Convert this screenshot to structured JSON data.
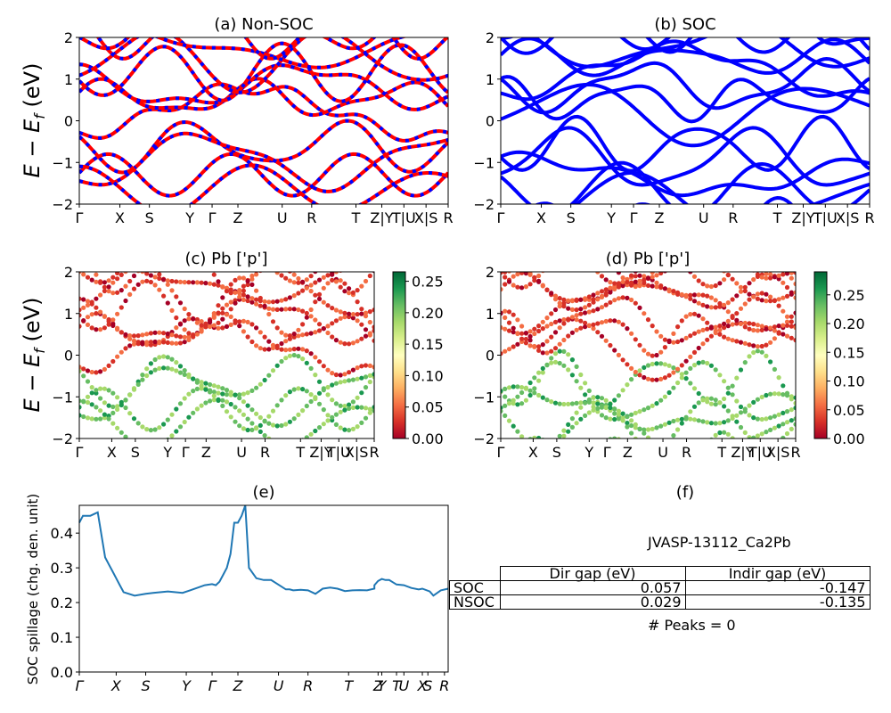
{
  "chart_data": [
    {
      "panel": "a",
      "type": "line",
      "title": "(a) Non-SOC",
      "ylabel": "E − E_f (eV)",
      "ylim": [
        -2,
        2
      ],
      "yticks": [
        -2,
        -1,
        0,
        1,
        2
      ],
      "xticks": [
        "Γ",
        "X",
        "S",
        "Y",
        "Γ",
        "Z",
        "U",
        "R",
        "T",
        "Z|Y",
        "T|U",
        "X|S",
        "R"
      ],
      "series_color": "#ff0000",
      "overlay_color": "#0000ff",
      "bands_below_fermi": 4,
      "bands_above_fermi": 8
    },
    {
      "panel": "b",
      "type": "line",
      "title": "(b) SOC",
      "ylim": [
        -2,
        2
      ],
      "yticks": [
        -2,
        -1,
        0,
        1,
        2
      ],
      "xticks": [
        "Γ",
        "X",
        "S",
        "Y",
        "Γ",
        "Z",
        "U",
        "R",
        "T",
        "Z|Y",
        "T|U",
        "X|S",
        "R"
      ],
      "series_color": "#0000ff",
      "bands_below_fermi": 8,
      "bands_above_fermi": 12
    },
    {
      "panel": "c",
      "type": "scatter",
      "title": "(c)  Pb ['p']",
      "ylabel": "E − E_f (eV)",
      "ylim": [
        -2,
        2
      ],
      "yticks": [
        -2,
        -1,
        0,
        1,
        2
      ],
      "xticks": [
        "Γ",
        "X",
        "S",
        "Y",
        "Γ",
        "Z",
        "U",
        "R",
        "T",
        "Z|Y",
        "T|U",
        "X|S",
        "R"
      ],
      "colormap": "RdYlGn",
      "colorbar_range": [
        0.0,
        0.265
      ],
      "colorbar_ticks": [
        "0.00",
        "0.05",
        "0.10",
        "0.15",
        "0.20",
        "0.25"
      ]
    },
    {
      "panel": "d",
      "type": "scatter",
      "title": "(d) Pb ['p']",
      "ylim": [
        -2,
        2
      ],
      "yticks": [
        -2,
        -1,
        0,
        1,
        2
      ],
      "xticks": [
        "Γ",
        "X",
        "S",
        "Y",
        "Γ",
        "Z",
        "U",
        "R",
        "T",
        "Z|Y",
        "T|U",
        "X|S",
        "R"
      ],
      "colormap": "RdYlGn",
      "colorbar_range": [
        0.0,
        0.29
      ],
      "colorbar_ticks": [
        "0.00",
        "0.05",
        "0.10",
        "0.15",
        "0.20",
        "0.25"
      ]
    },
    {
      "panel": "e",
      "type": "line",
      "title": "(e)",
      "ylabel": "SOC spillage (chg. den. unit)",
      "ylim": [
        0.0,
        0.48
      ],
      "yticks": [
        "0.0",
        "0.1",
        "0.2",
        "0.3",
        "0.4"
      ],
      "xticks": [
        "Γ",
        "X",
        "S",
        "Y",
        "Γ",
        "Z",
        "U",
        "R",
        "T",
        "Z",
        "Y",
        "T",
        "U",
        "X",
        "S",
        "R"
      ],
      "x": [
        0,
        0.01,
        0.03,
        0.05,
        0.07,
        0.08,
        0.09,
        0.1,
        0.11,
        0.12,
        0.15,
        0.18,
        0.2,
        0.24,
        0.28,
        0.3,
        0.34,
        0.36,
        0.37,
        0.38,
        0.39,
        0.4,
        0.41,
        0.42,
        0.43,
        0.44,
        0.45,
        0.46,
        0.48,
        0.5,
        0.52,
        0.56,
        0.57,
        0.58,
        0.6,
        0.62,
        0.64,
        0.66,
        0.68,
        0.7,
        0.72,
        0.74,
        0.76,
        0.78,
        0.8,
        0.8,
        0.81,
        0.82,
        0.83,
        0.84,
        0.86,
        0.88,
        0.9,
        0.92,
        0.93,
        0.95,
        0.96,
        0.98,
        1.0
      ],
      "y": [
        0.43,
        0.45,
        0.45,
        0.46,
        0.33,
        0.31,
        0.29,
        0.27,
        0.25,
        0.23,
        0.22,
        0.225,
        0.228,
        0.232,
        0.228,
        0.235,
        0.25,
        0.253,
        0.25,
        0.26,
        0.28,
        0.3,
        0.34,
        0.43,
        0.43,
        0.45,
        0.48,
        0.3,
        0.27,
        0.265,
        0.265,
        0.238,
        0.238,
        0.235,
        0.237,
        0.235,
        0.225,
        0.24,
        0.243,
        0.24,
        0.233,
        0.235,
        0.236,
        0.235,
        0.24,
        0.25,
        0.262,
        0.268,
        0.265,
        0.265,
        0.252,
        0.25,
        0.242,
        0.238,
        0.24,
        0.232,
        0.22,
        0.235,
        0.24
      ],
      "color": "#1f77b4"
    }
  ],
  "info": {
    "title": "(f)",
    "material": "JVASP-13112_Ca2Pb",
    "col_dir": "Dir gap (eV)",
    "col_indir": "Indir gap (eV)",
    "rows": [
      {
        "label": "SOC",
        "dir": "0.057",
        "indir": "-0.147"
      },
      {
        "label": "NSOC",
        "dir": "0.029",
        "indir": "-0.135"
      }
    ],
    "peaks": "# Peaks = 0"
  }
}
